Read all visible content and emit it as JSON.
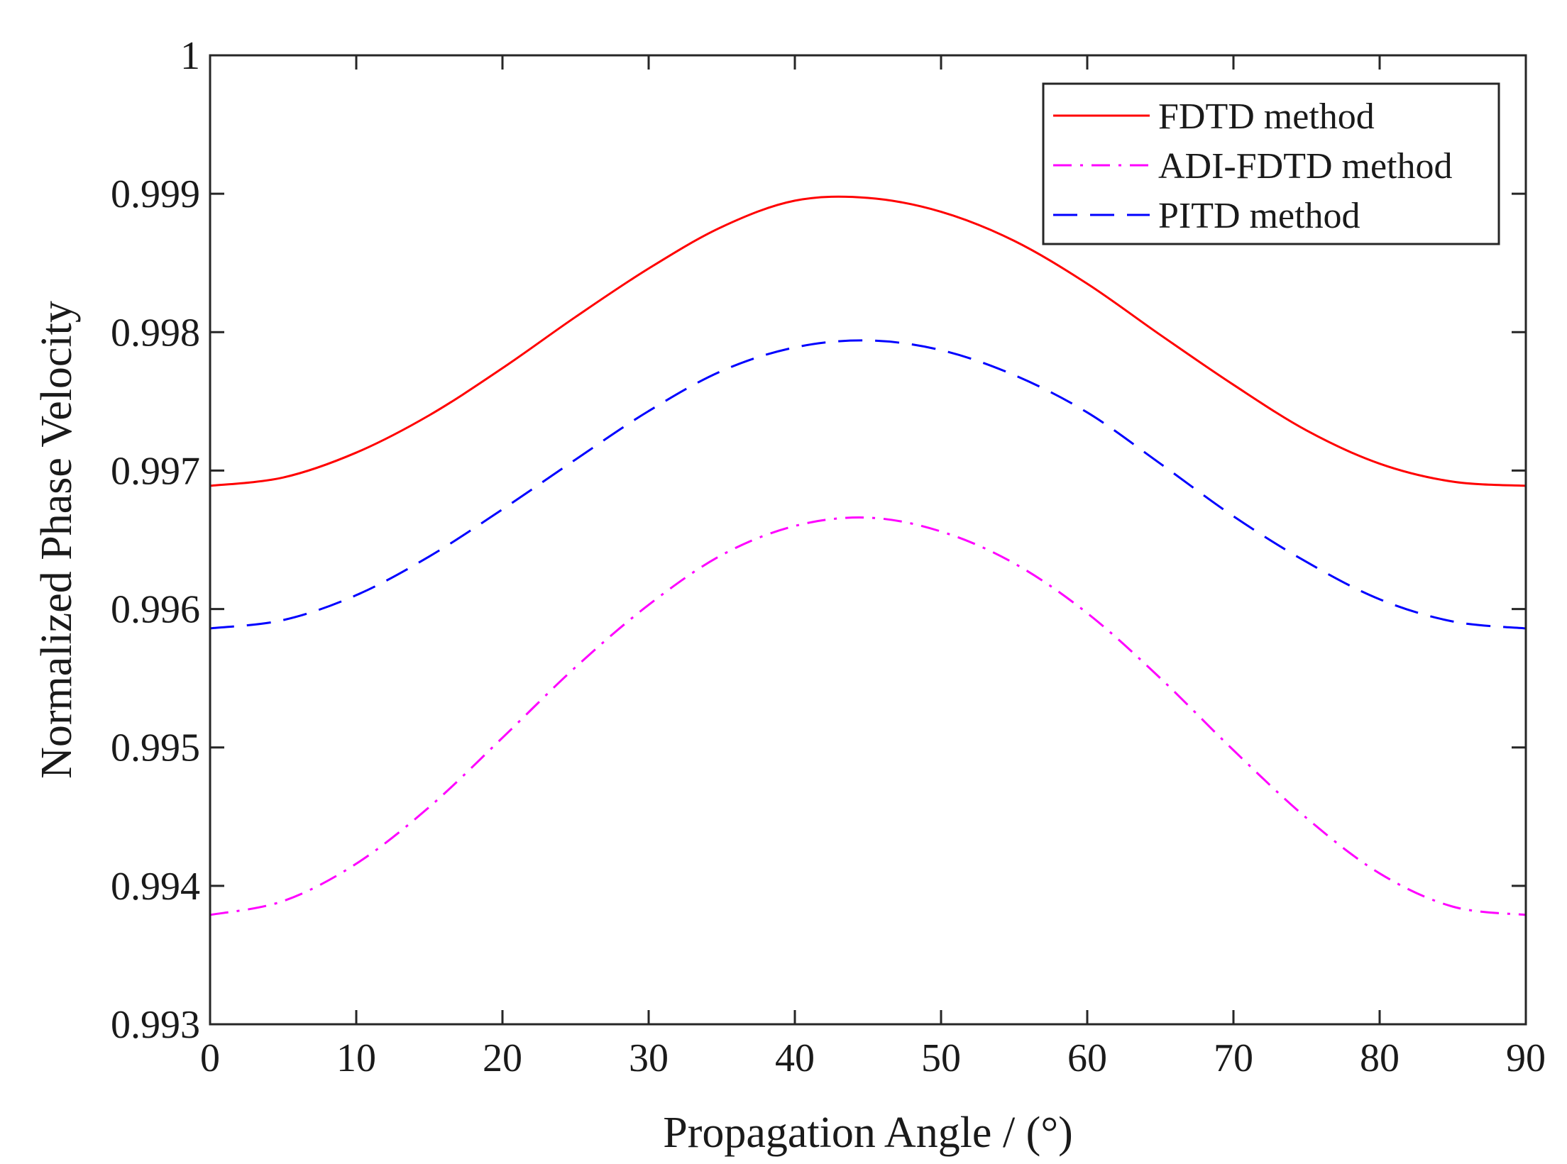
{
  "chart_data": {
    "type": "line",
    "title": "",
    "xlabel": "Propagation Angle / (°)",
    "ylabel": "Normalized Phase Velocity",
    "xlim": [
      0,
      90
    ],
    "ylim": [
      0.993,
      1
    ],
    "xticks": [
      0,
      10,
      20,
      30,
      40,
      50,
      60,
      70,
      80,
      90
    ],
    "xtick_labels": [
      "0",
      "10",
      "20",
      "30",
      "40",
      "50",
      "60",
      "70",
      "80",
      "90"
    ],
    "yticks": [
      0.993,
      0.994,
      0.995,
      0.996,
      0.997,
      0.998,
      0.999,
      1
    ],
    "ytick_labels": [
      "0.993",
      "0.994",
      "0.995",
      "0.996",
      "0.997",
      "0.998",
      "0.999",
      "1"
    ],
    "grid": false,
    "legend_position": "top-right",
    "x": [
      0,
      5,
      10,
      15,
      20,
      25,
      30,
      35,
      40,
      45,
      50,
      55,
      60,
      65,
      70,
      75,
      80,
      85,
      90
    ],
    "series": [
      {
        "name": "FDTD method",
        "color": "#ff0000",
        "dash": "solid",
        "values": [
          0.99689,
          0.99695,
          0.99713,
          0.9974,
          0.99774,
          0.99811,
          0.99846,
          0.99876,
          0.99895,
          0.99897,
          0.99887,
          0.99866,
          0.99835,
          0.99798,
          0.99762,
          0.99729,
          0.99705,
          0.99692,
          0.99689
        ]
      },
      {
        "name": "ADI-FDTD method",
        "color": "#ff00ff",
        "dash": "dashdot",
        "values": [
          0.99379,
          0.99389,
          0.99416,
          0.99457,
          0.99507,
          0.99558,
          0.99603,
          0.99639,
          0.9966,
          0.99666,
          0.99656,
          0.99633,
          0.99597,
          0.9955,
          0.99498,
          0.99449,
          0.99409,
          0.99385,
          0.99379
        ]
      },
      {
        "name": "PITD method",
        "color": "#0000ff",
        "dash": "dashed",
        "values": [
          0.99586,
          0.99592,
          0.9961,
          0.99638,
          0.99672,
          0.99708,
          0.99743,
          0.99772,
          0.99789,
          0.99794,
          0.99787,
          0.99769,
          0.99742,
          0.99705,
          0.99667,
          0.99634,
          0.99607,
          0.99591,
          0.99586
        ]
      }
    ]
  }
}
